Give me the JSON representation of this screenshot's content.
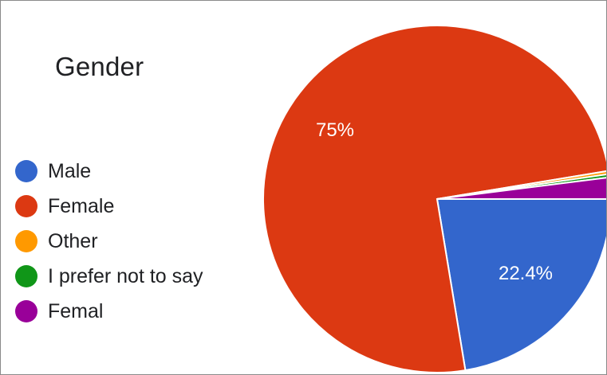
{
  "chart_data": {
    "type": "pie",
    "title": "Gender",
    "legend_position": "left",
    "slices": [
      {
        "label": "Male",
        "value": 22.4,
        "display": "22.4%",
        "color": "#3366cc"
      },
      {
        "label": "Female",
        "value": 75,
        "display": "75%",
        "color": "#dc3912"
      },
      {
        "label": "Other",
        "value": 0.3,
        "display": "",
        "color": "#ff9900"
      },
      {
        "label": "I prefer not to say",
        "value": 0.3,
        "display": "",
        "color": "#109618"
      },
      {
        "label": "Femal",
        "value": 2.0,
        "display": "",
        "color": "#990099"
      }
    ]
  }
}
